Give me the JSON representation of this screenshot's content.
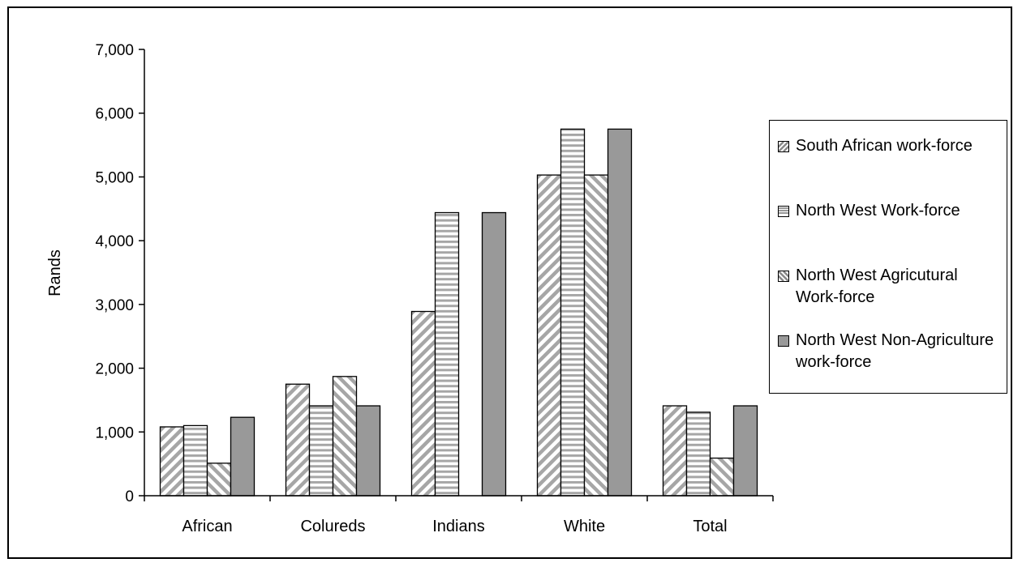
{
  "chart_data": {
    "type": "bar",
    "categories": [
      "African",
      "Colureds",
      "Indians",
      "White",
      "Total"
    ],
    "series": [
      {
        "name": "South African  work-force",
        "values": [
          1080,
          1750,
          2890,
          5030,
          1410
        ],
        "fill": "#d9d9d9",
        "pattern": "diagonal-up"
      },
      {
        "name": "North West Work-force",
        "values": [
          1100,
          1410,
          4440,
          5750,
          1310
        ],
        "fill": "#ffffff",
        "pattern": "horizontal"
      },
      {
        "name": "North West Agricutural Work-force",
        "values": [
          510,
          1870,
          0,
          5030,
          590
        ],
        "fill": "#d9d9d9",
        "pattern": "diagonal-down"
      },
      {
        "name": "North West Non-Agriculture work-force",
        "values": [
          1230,
          1410,
          4440,
          5750,
          1410
        ],
        "fill": "#999999",
        "pattern": "solid"
      }
    ],
    "ylabel": "Rands",
    "xlabel": "",
    "ylim": [
      0,
      7000
    ],
    "yticks": [
      "0",
      "1,000",
      "2,000",
      "3,000",
      "4,000",
      "5,000",
      "6,000",
      "7,000"
    ],
    "grid": false,
    "legend": "right"
  }
}
